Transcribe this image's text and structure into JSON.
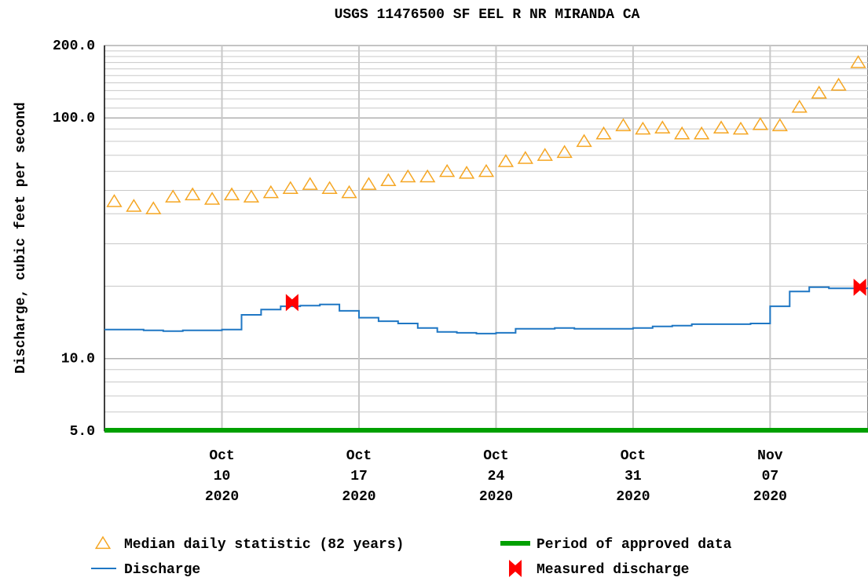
{
  "chart_data": {
    "type": "line",
    "title": "USGS 11476500 SF EEL R NR MIRANDA CA",
    "y_label": "Discharge, cubic feet per second",
    "log_y": true,
    "grid": true,
    "ylim": [
      5,
      200
    ],
    "yticks": [
      {
        "value": 200,
        "label": "200.0"
      },
      {
        "value": 100,
        "label": "100.0"
      },
      {
        "value": 10,
        "label": "10.0"
      },
      {
        "value": 5,
        "label": "5.0"
      }
    ],
    "yminor": [
      6,
      7,
      8,
      9,
      20,
      30,
      40,
      50,
      60,
      70,
      80,
      90,
      110,
      120,
      130,
      140,
      150,
      160,
      170,
      180,
      190
    ],
    "xlim": [
      "2020-10-04",
      "2020-11-12"
    ],
    "xticks": [
      {
        "value": "2020-10-10",
        "label": [
          "Oct",
          "10",
          "2020"
        ]
      },
      {
        "value": "2020-10-17",
        "label": [
          "Oct",
          "17",
          "2020"
        ]
      },
      {
        "value": "2020-10-24",
        "label": [
          "Oct",
          "24",
          "2020"
        ]
      },
      {
        "value": "2020-10-31",
        "label": [
          "Oct",
          "31",
          "2020"
        ]
      },
      {
        "value": "2020-11-07",
        "label": [
          "Nov",
          "07",
          "2020"
        ]
      }
    ],
    "median": {
      "name": "Median daily statistic (82 years)",
      "color": "#f5a623",
      "x": [
        "2020-10-04T12:00",
        "2020-10-05T12:00",
        "2020-10-06T12:00",
        "2020-10-07T12:00",
        "2020-10-08T12:00",
        "2020-10-09T12:00",
        "2020-10-10T12:00",
        "2020-10-11T12:00",
        "2020-10-12T12:00",
        "2020-10-13T12:00",
        "2020-10-14T12:00",
        "2020-10-15T12:00",
        "2020-10-16T12:00",
        "2020-10-17T12:00",
        "2020-10-18T12:00",
        "2020-10-19T12:00",
        "2020-10-20T12:00",
        "2020-10-21T12:00",
        "2020-10-22T12:00",
        "2020-10-23T12:00",
        "2020-10-24T12:00",
        "2020-10-25T12:00",
        "2020-10-26T12:00",
        "2020-10-27T12:00",
        "2020-10-28T12:00",
        "2020-10-29T12:00",
        "2020-10-30T12:00",
        "2020-10-31T12:00",
        "2020-11-01T12:00",
        "2020-11-02T12:00",
        "2020-11-03T12:00",
        "2020-11-04T12:00",
        "2020-11-05T12:00",
        "2020-11-06T12:00",
        "2020-11-07T12:00",
        "2020-11-08T12:00",
        "2020-11-09T12:00",
        "2020-11-10T12:00",
        "2020-11-11T12:00"
      ],
      "values": [
        45,
        43,
        42,
        47,
        48,
        46,
        48,
        47,
        49,
        51,
        53,
        51,
        49,
        53,
        55,
        57,
        57,
        60,
        59,
        60,
        66,
        68,
        70,
        72,
        80,
        86,
        93,
        90,
        91,
        86,
        86,
        91,
        90,
        94,
        93,
        111,
        127,
        137,
        170
      ]
    },
    "discharge": {
      "name": "Discharge",
      "color": "#1f77c4",
      "x": [
        "2020-10-04",
        "2020-10-05",
        "2020-10-06",
        "2020-10-07",
        "2020-10-08",
        "2020-10-09",
        "2020-10-10",
        "2020-10-11",
        "2020-10-12",
        "2020-10-13",
        "2020-10-14",
        "2020-10-15",
        "2020-10-16",
        "2020-10-17",
        "2020-10-18",
        "2020-10-19",
        "2020-10-20",
        "2020-10-21",
        "2020-10-22",
        "2020-10-23",
        "2020-10-24",
        "2020-10-25",
        "2020-10-26",
        "2020-10-27",
        "2020-10-28",
        "2020-10-29",
        "2020-10-30",
        "2020-10-31",
        "2020-11-01",
        "2020-11-02",
        "2020-11-03",
        "2020-11-04",
        "2020-11-05",
        "2020-11-06",
        "2020-11-07",
        "2020-11-08",
        "2020-11-09",
        "2020-11-10",
        "2020-11-11",
        "2020-11-12"
      ],
      "values": [
        13.2,
        13.2,
        13.1,
        13.0,
        13.1,
        13.1,
        13.2,
        15.2,
        16.0,
        16.5,
        16.6,
        16.8,
        15.8,
        14.8,
        14.3,
        14.0,
        13.4,
        12.9,
        12.8,
        12.7,
        12.8,
        13.3,
        13.3,
        13.4,
        13.3,
        13.3,
        13.3,
        13.4,
        13.6,
        13.7,
        13.9,
        13.9,
        13.9,
        14.0,
        16.5,
        19.0,
        19.8,
        19.6,
        19.6,
        19.6
      ]
    },
    "measured": {
      "name": "Measured discharge",
      "color": "#ff0000",
      "x": [
        "2020-10-13T14:00",
        "2020-11-11T14:00"
      ],
      "values": [
        17.1,
        19.8
      ]
    },
    "approved": {
      "name": "Period of approved data",
      "color": "#00a000"
    }
  }
}
